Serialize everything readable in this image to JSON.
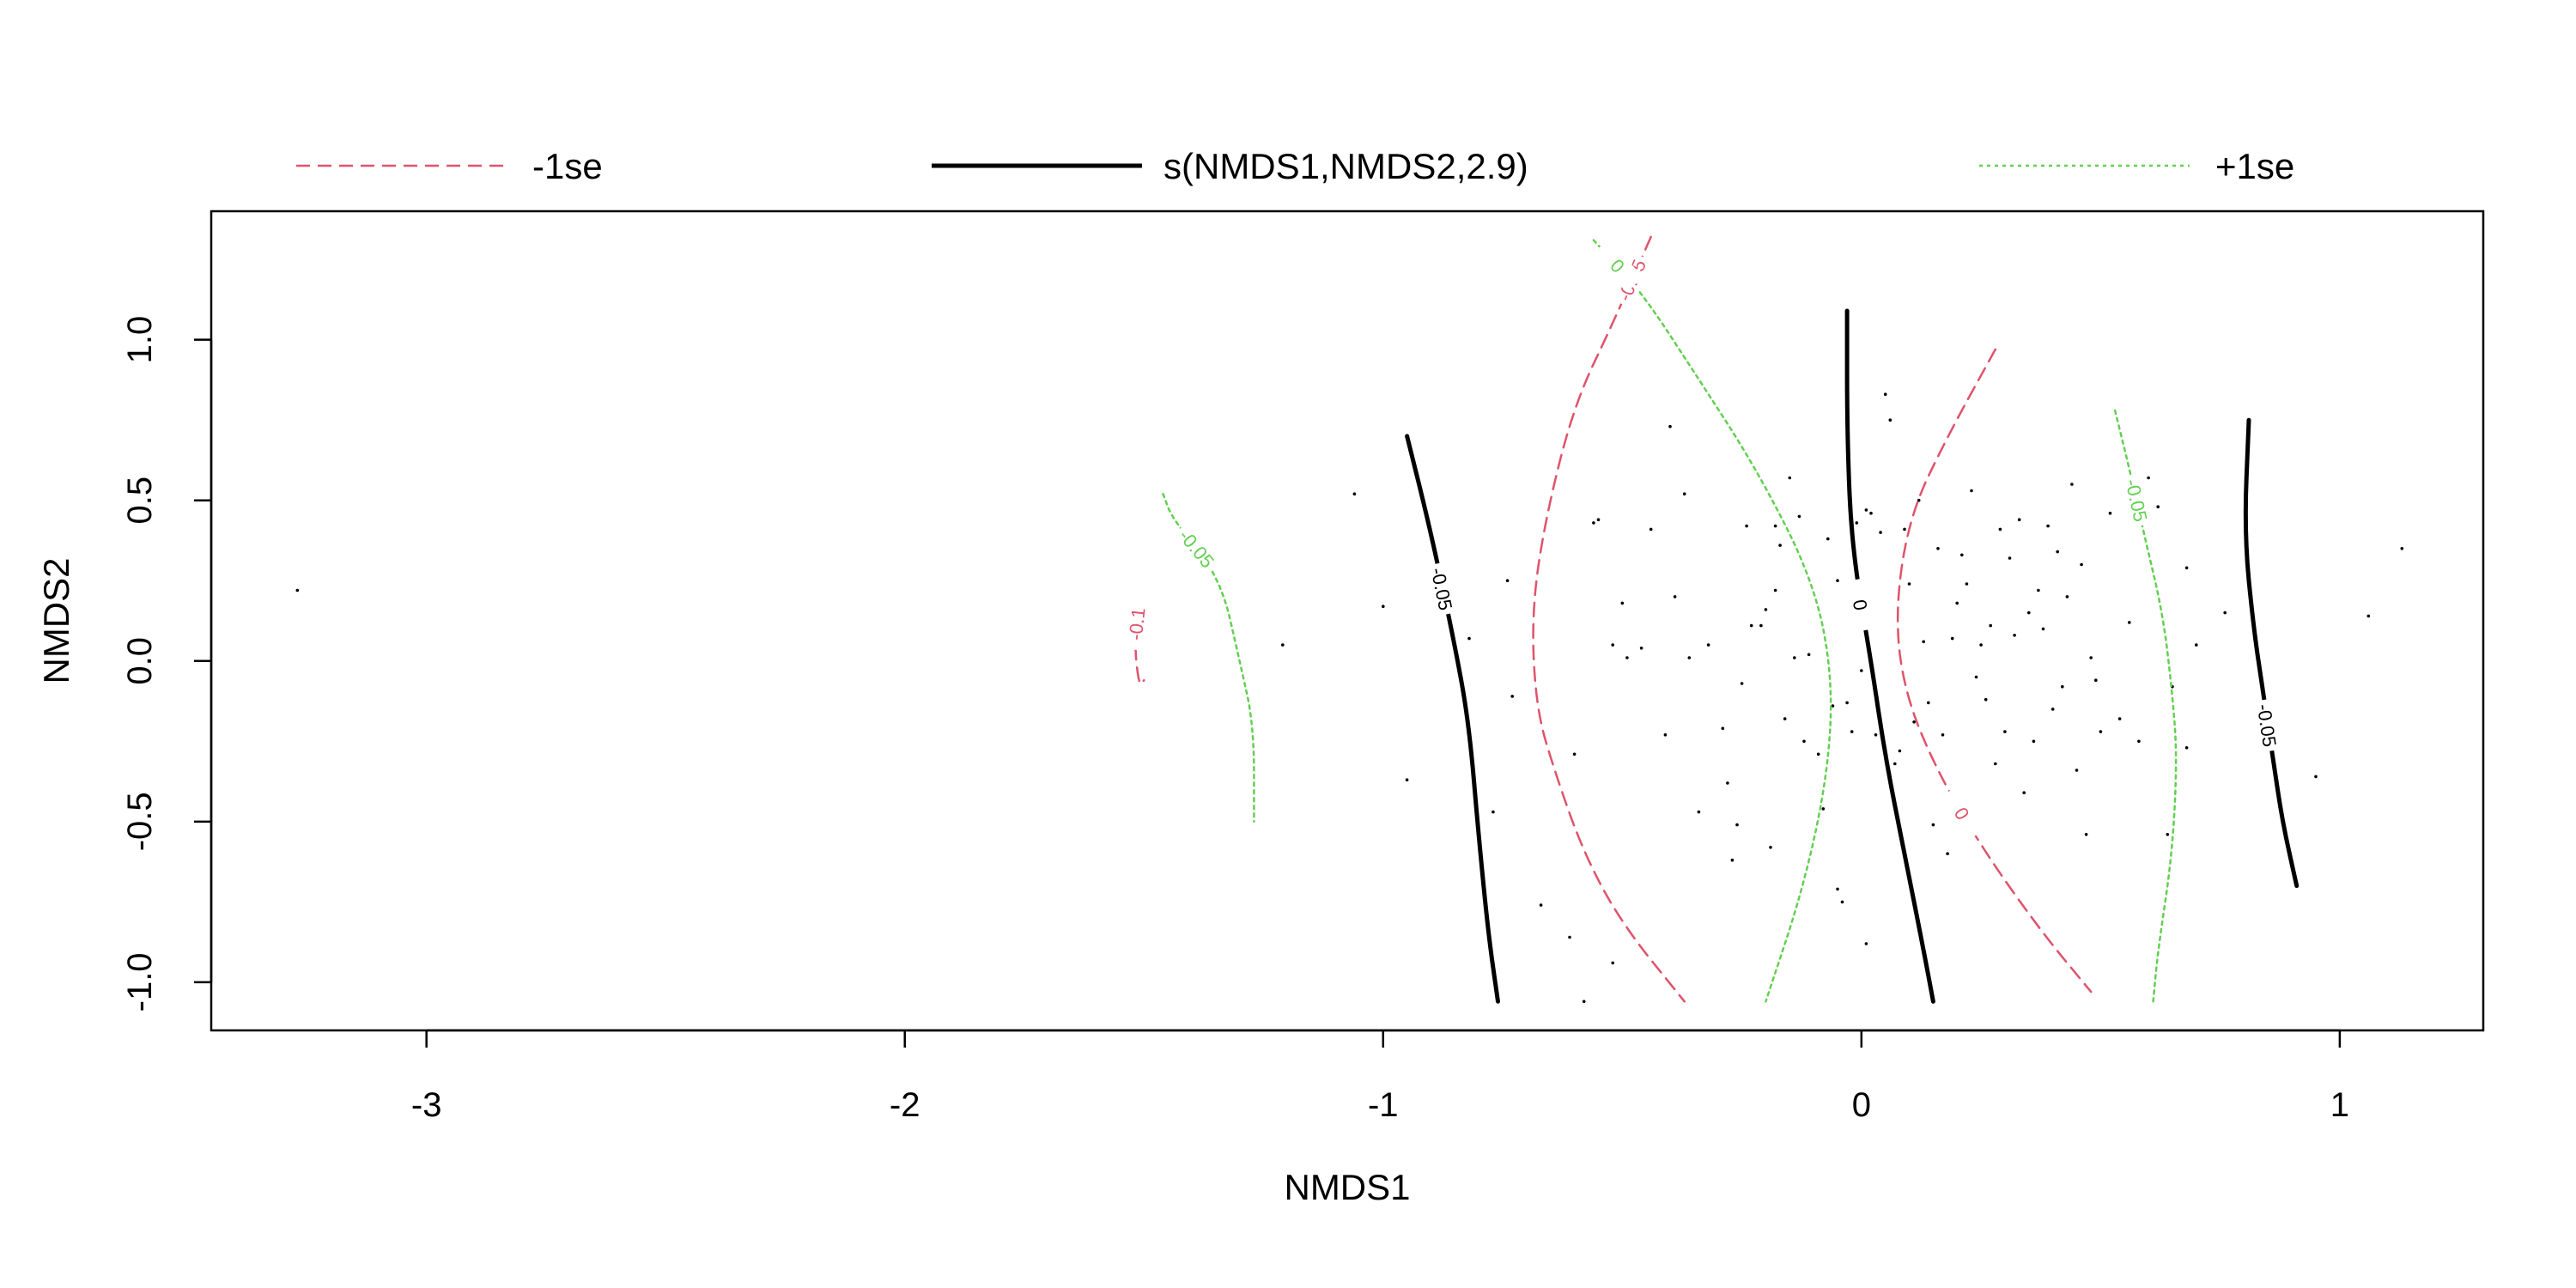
{
  "chart_data": {
    "type": "contour",
    "title": "",
    "xlabel": "NMDS1",
    "ylabel": "NMDS2",
    "xlim": [
      -3.45,
      1.3
    ],
    "ylim": [
      -1.15,
      1.4
    ],
    "x_ticks": [
      -3,
      -2,
      -1,
      0,
      1
    ],
    "x_tick_labels": [
      "-3",
      "-2",
      "-1",
      "0",
      "1"
    ],
    "y_ticks": [
      -1.0,
      -0.5,
      0.0,
      0.5,
      1.0
    ],
    "y_tick_labels": [
      "-1.0",
      "-0.5",
      "0.0",
      "0.5",
      "1.0"
    ],
    "grid": false,
    "legend_position": "top",
    "legend": [
      {
        "label": "-1se",
        "color": "#DF536B",
        "dash": "dashed",
        "key": "minus"
      },
      {
        "label": "s(NMDS1,NMDS2,2.9)",
        "color": "#000000",
        "dash": "solid",
        "key": "fit"
      },
      {
        "label": "+1se",
        "color": "#61D04F",
        "dash": "dotted",
        "key": "plus"
      }
    ],
    "series": [
      {
        "key": "fit",
        "label": "-0.05",
        "label_at": 2,
        "points": [
          [
            -0.95,
            0.7
          ],
          [
            -0.9,
            0.4
          ],
          [
            -0.85,
            0.05
          ],
          [
            -0.82,
            -0.2
          ],
          [
            -0.8,
            -0.55
          ],
          [
            -0.78,
            -0.85
          ],
          [
            -0.76,
            -1.06
          ]
        ]
      },
      {
        "key": "fit",
        "label": "0",
        "label_at": 3,
        "points": [
          [
            -0.03,
            1.09
          ],
          [
            -0.03,
            0.7
          ],
          [
            -0.02,
            0.35
          ],
          [
            0.02,
            0.0
          ],
          [
            0.05,
            -0.3
          ],
          [
            0.09,
            -0.6
          ],
          [
            0.13,
            -0.9
          ],
          [
            0.15,
            -1.06
          ]
        ]
      },
      {
        "key": "fit",
        "label": "-0.05",
        "label_at": 4,
        "points": [
          [
            0.81,
            0.75
          ],
          [
            0.8,
            0.4
          ],
          [
            0.82,
            0.1
          ],
          [
            0.84,
            -0.1
          ],
          [
            0.86,
            -0.3
          ],
          [
            0.88,
            -0.5
          ],
          [
            0.91,
            -0.7
          ]
        ]
      },
      {
        "key": "minus",
        "label": "-0.1",
        "label_at": 1,
        "points": [
          [
            -1.51,
            0.18
          ],
          [
            -1.52,
            0.05
          ],
          [
            -1.51,
            -0.08
          ],
          [
            -1.5,
            -0.06
          ]
        ]
      },
      {
        "key": "minus",
        "label": "-0.05",
        "label_at": 1,
        "points": [
          [
            -0.44,
            1.32
          ],
          [
            -0.52,
            1.05
          ],
          [
            -0.6,
            0.8
          ],
          [
            -0.66,
            0.45
          ],
          [
            -0.69,
            0.15
          ],
          [
            -0.68,
            -0.15
          ],
          [
            -0.64,
            -0.35
          ],
          [
            -0.58,
            -0.6
          ],
          [
            -0.5,
            -0.82
          ],
          [
            -0.37,
            -1.06
          ]
        ]
      },
      {
        "key": "minus",
        "label": "0",
        "label_at": 6,
        "points": [
          [
            0.28,
            0.97
          ],
          [
            0.18,
            0.7
          ],
          [
            0.1,
            0.45
          ],
          [
            0.07,
            0.15
          ],
          [
            0.09,
            -0.1
          ],
          [
            0.16,
            -0.35
          ],
          [
            0.26,
            -0.6
          ],
          [
            0.38,
            -0.85
          ],
          [
            0.48,
            -1.03
          ]
        ]
      },
      {
        "key": "plus",
        "label": "-0.05",
        "label_at": 2,
        "points": [
          [
            -1.46,
            0.52
          ],
          [
            -1.44,
            0.44
          ],
          [
            -1.34,
            0.26
          ],
          [
            -1.3,
            0.0
          ],
          [
            -1.27,
            -0.2
          ],
          [
            -1.27,
            -0.5
          ]
        ]
      },
      {
        "key": "plus",
        "label": "0",
        "label_at": 1,
        "points": [
          [
            -0.56,
            1.31
          ],
          [
            -0.46,
            1.15
          ],
          [
            -0.35,
            0.9
          ],
          [
            -0.22,
            0.6
          ],
          [
            -0.1,
            0.25
          ],
          [
            -0.06,
            -0.05
          ],
          [
            -0.07,
            -0.35
          ],
          [
            -0.12,
            -0.7
          ],
          [
            -0.2,
            -1.06
          ]
        ]
      },
      {
        "key": "plus",
        "label": "-0.05",
        "label_at": 2,
        "points": [
          [
            0.53,
            0.78
          ],
          [
            0.56,
            0.6
          ],
          [
            0.59,
            0.4
          ],
          [
            0.63,
            0.15
          ],
          [
            0.65,
            -0.1
          ],
          [
            0.66,
            -0.3
          ],
          [
            0.65,
            -0.6
          ],
          [
            0.62,
            -0.9
          ],
          [
            0.61,
            -1.06
          ]
        ]
      }
    ],
    "scatter": [
      [
        -3.27,
        0.22
      ],
      [
        -1.21,
        0.05
      ],
      [
        -1.06,
        0.52
      ],
      [
        -1.0,
        0.17
      ],
      [
        -0.95,
        -0.37
      ],
      [
        -0.82,
        0.07
      ],
      [
        -0.77,
        -0.47
      ],
      [
        -0.74,
        0.25
      ],
      [
        -0.73,
        -0.11
      ],
      [
        -0.67,
        -0.76
      ],
      [
        -0.61,
        -0.86
      ],
      [
        -0.6,
        -0.29
      ],
      [
        -0.58,
        -1.06
      ],
      [
        -0.56,
        0.43
      ],
      [
        -0.55,
        0.44
      ],
      [
        -0.52,
        0.05
      ],
      [
        -0.52,
        -0.94
      ],
      [
        -0.5,
        0.18
      ],
      [
        -0.49,
        0.01
      ],
      [
        -0.46,
        0.04
      ],
      [
        -0.44,
        0.41
      ],
      [
        -0.41,
        -0.23
      ],
      [
        -0.4,
        0.73
      ],
      [
        -0.39,
        0.2
      ],
      [
        -0.37,
        0.52
      ],
      [
        -0.36,
        0.01
      ],
      [
        -0.34,
        -0.47
      ],
      [
        -0.32,
        0.05
      ],
      [
        -0.29,
        -0.21
      ],
      [
        -0.28,
        -0.38
      ],
      [
        -0.27,
        -0.62
      ],
      [
        -0.26,
        -0.51
      ],
      [
        -0.25,
        -0.07
      ],
      [
        -0.24,
        0.42
      ],
      [
        -0.23,
        0.11
      ],
      [
        -0.21,
        0.11
      ],
      [
        -0.2,
        0.16
      ],
      [
        -0.19,
        -0.58
      ],
      [
        -0.18,
        0.22
      ],
      [
        -0.18,
        0.42
      ],
      [
        -0.17,
        0.36
      ],
      [
        -0.16,
        -0.18
      ],
      [
        -0.15,
        0.57
      ],
      [
        -0.14,
        0.01
      ],
      [
        -0.13,
        0.45
      ],
      [
        -0.12,
        -0.25
      ],
      [
        -0.11,
        0.02
      ],
      [
        -0.09,
        -0.29
      ],
      [
        -0.08,
        -0.46
      ],
      [
        -0.07,
        0.38
      ],
      [
        -0.06,
        -0.14
      ],
      [
        -0.05,
        -0.71
      ],
      [
        -0.05,
        0.25
      ],
      [
        -0.04,
        -0.75
      ],
      [
        -0.03,
        -0.13
      ],
      [
        -0.02,
        -0.22
      ],
      [
        -0.01,
        0.43
      ],
      [
        0.0,
        -0.03
      ],
      [
        0.01,
        -0.88
      ],
      [
        0.01,
        0.47
      ],
      [
        0.02,
        0.46
      ],
      [
        0.03,
        -0.23
      ],
      [
        0.04,
        0.4
      ],
      [
        0.05,
        0.83
      ],
      [
        0.06,
        0.75
      ],
      [
        0.07,
        -0.32
      ],
      [
        0.08,
        -0.28
      ],
      [
        0.09,
        0.41
      ],
      [
        0.1,
        0.24
      ],
      [
        0.11,
        -0.19
      ],
      [
        0.12,
        0.5
      ],
      [
        0.13,
        0.06
      ],
      [
        0.14,
        -0.13
      ],
      [
        0.15,
        -0.51
      ],
      [
        0.16,
        0.35
      ],
      [
        0.17,
        -0.23
      ],
      [
        0.18,
        -0.6
      ],
      [
        0.19,
        0.07
      ],
      [
        0.2,
        0.18
      ],
      [
        0.21,
        0.33
      ],
      [
        0.22,
        0.24
      ],
      [
        0.23,
        0.53
      ],
      [
        0.24,
        -0.05
      ],
      [
        0.25,
        0.05
      ],
      [
        0.26,
        -0.12
      ],
      [
        0.27,
        0.11
      ],
      [
        0.28,
        -0.32
      ],
      [
        0.29,
        0.41
      ],
      [
        0.3,
        -0.22
      ],
      [
        0.31,
        0.32
      ],
      [
        0.32,
        0.08
      ],
      [
        0.33,
        0.44
      ],
      [
        0.34,
        -0.41
      ],
      [
        0.35,
        0.15
      ],
      [
        0.36,
        -0.25
      ],
      [
        0.37,
        0.22
      ],
      [
        0.38,
        0.1
      ],
      [
        0.39,
        0.42
      ],
      [
        0.4,
        -0.15
      ],
      [
        0.41,
        0.34
      ],
      [
        0.42,
        -0.08
      ],
      [
        0.43,
        0.2
      ],
      [
        0.44,
        0.55
      ],
      [
        0.45,
        -0.34
      ],
      [
        0.46,
        0.3
      ],
      [
        0.47,
        -0.54
      ],
      [
        0.48,
        0.01
      ],
      [
        0.49,
        -0.06
      ],
      [
        0.5,
        -0.22
      ],
      [
        0.52,
        0.46
      ],
      [
        0.54,
        -0.18
      ],
      [
        0.56,
        0.12
      ],
      [
        0.58,
        -0.25
      ],
      [
        0.6,
        0.57
      ],
      [
        0.62,
        0.48
      ],
      [
        0.64,
        -0.54
      ],
      [
        0.65,
        -0.08
      ],
      [
        0.68,
        0.29
      ],
      [
        0.68,
        -0.27
      ],
      [
        0.7,
        0.05
      ],
      [
        0.76,
        0.15
      ],
      [
        0.85,
        -0.16
      ],
      [
        0.95,
        -0.36
      ],
      [
        1.06,
        0.14
      ],
      [
        1.13,
        0.35
      ]
    ]
  }
}
